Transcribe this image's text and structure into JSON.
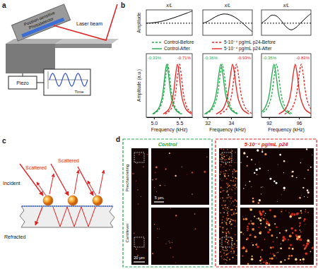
{
  "panel_labels": [
    "a",
    "b",
    "c",
    "d"
  ],
  "panel_a": {
    "detector_label": [
      "Position-sensitive",
      "Photodetector"
    ],
    "laser_label": "Laser beam",
    "piezo_label": "Piezo",
    "time_label": "Time"
  },
  "legend": [
    {
      "name": "Control-Before",
      "color": "#22a84a",
      "line_style": "dashed"
    },
    {
      "name": "5·10⁻⁴ pg/mL p24-Before",
      "color": "#e8231f",
      "line_style": "dashed"
    },
    {
      "name": "Control-After",
      "color": "#22a84a",
      "line_style": "solid"
    },
    {
      "name": "5·10⁻⁴ pg/mL p24-After",
      "color": "#e8231f",
      "line_style": "solid"
    }
  ],
  "chart_data": [
    {
      "type": "line",
      "x_label": "x/L",
      "y_label": "Amplitude",
      "xlim": [
        0,
        1
      ],
      "ylim": [
        -1,
        1.1
      ],
      "tick_labels": false,
      "series": [
        {
          "color": "#000000",
          "line_style": "dashed",
          "x": [
            0,
            1
          ],
          "values": [
            0,
            0
          ]
        },
        {
          "color": "#000000",
          "line_style": "solid",
          "x": [
            0,
            0.1,
            0.2,
            0.3,
            0.4,
            0.5,
            0.6,
            0.7,
            0.8,
            0.9,
            1
          ],
          "values": [
            0,
            0.02,
            0.06,
            0.13,
            0.22,
            0.33,
            0.45,
            0.58,
            0.72,
            0.86,
            1
          ]
        }
      ]
    },
    {
      "type": "line",
      "x_label": "x/L",
      "xlim": [
        0,
        1
      ],
      "ylim": [
        -1,
        1.1
      ],
      "tick_labels": false,
      "series": [
        {
          "color": "#000000",
          "line_style": "dashed",
          "x": [
            0,
            1
          ],
          "values": [
            0,
            0
          ]
        },
        {
          "color": "#000000",
          "line_style": "solid",
          "x": [
            0,
            0.1,
            0.2,
            0.3,
            0.4,
            0.5,
            0.6,
            0.7,
            0.8,
            0.9,
            1
          ],
          "values": [
            0,
            0.15,
            0.4,
            0.62,
            0.75,
            0.74,
            0.6,
            0.35,
            0.02,
            -0.35,
            -0.7
          ]
        }
      ]
    },
    {
      "type": "line",
      "x_label": "x/L",
      "xlim": [
        0,
        1
      ],
      "ylim": [
        -1,
        1.1
      ],
      "tick_labels": false,
      "series": [
        {
          "color": "#000000",
          "line_style": "dashed",
          "x": [
            0,
            1
          ],
          "values": [
            0,
            0
          ]
        },
        {
          "color": "#000000",
          "line_style": "solid",
          "x": [
            0,
            0.1,
            0.2,
            0.3,
            0.4,
            0.5,
            0.6,
            0.7,
            0.8,
            0.9,
            1
          ],
          "values": [
            0,
            0.3,
            0.65,
            0.6,
            0.2,
            -0.3,
            -0.55,
            -0.35,
            0.05,
            0.45,
            0.8
          ]
        }
      ]
    },
    {
      "type": "line",
      "x_label": "Frequency (kHz)",
      "y_label": "Amplitude (a.u.)",
      "xlim": [
        4.85,
        5.75
      ],
      "ylim": [
        0,
        1.2
      ],
      "tick_labels": "x",
      "xticks": [
        {
          "value": 5,
          "label": "5.0"
        },
        5.5
      ],
      "annotations": [
        {
          "text": "-0.33%",
          "color": "#22a84a"
        },
        {
          "text": "-0.71%",
          "color": "#e8231f"
        }
      ],
      "series": [
        {
          "color": "#22a84a",
          "line_style": "dashed",
          "x": [
            4.99,
            5.095,
            5.165,
            5.2,
            5.235,
            5.27,
            5.305,
            5.34,
            5.375,
            5.445,
            5.55
          ],
          "values": [
            0.06,
            0.14,
            0.31,
            0.5,
            0.8,
            1,
            0.8,
            0.5,
            0.31,
            0.14,
            0.06
          ]
        },
        {
          "color": "#e8231f",
          "line_style": "dashed",
          "x": [
            5.22,
            5.325,
            5.395,
            5.43,
            5.465,
            5.5,
            5.535,
            5.57,
            5.605,
            5.675,
            5.78
          ],
          "values": [
            0.06,
            0.14,
            0.31,
            0.5,
            0.8,
            1,
            0.8,
            0.5,
            0.31,
            0.14,
            0.06
          ]
        },
        {
          "color": "#22a84a",
          "line_style": "solid",
          "x": [
            4.97,
            5.075,
            5.145,
            5.18,
            5.215,
            5.25,
            5.285,
            5.32,
            5.355,
            5.425,
            5.53
          ],
          "values": [
            0.06,
            0.14,
            0.31,
            0.5,
            0.8,
            1,
            0.8,
            0.5,
            0.31,
            0.14,
            0.06
          ]
        },
        {
          "color": "#e8231f",
          "line_style": "solid",
          "x": [
            5.18,
            5.285,
            5.355,
            5.39,
            5.425,
            5.46,
            5.495,
            5.53,
            5.565,
            5.635,
            5.74
          ],
          "values": [
            0.06,
            0.14,
            0.31,
            0.5,
            0.8,
            1,
            0.8,
            0.5,
            0.31,
            0.14,
            0.06
          ]
        }
      ]
    },
    {
      "type": "line",
      "x_label": "Frequency (kHz)",
      "xlim": [
        31.6,
        35.8
      ],
      "ylim": [
        0,
        1.2
      ],
      "tick_labels": "x",
      "xticks": [
        32,
        34
      ],
      "annotations": [
        {
          "text": "-0.36%",
          "color": "#22a84a"
        },
        {
          "text": "-0.93%",
          "color": "#e8231f"
        }
      ],
      "series": [
        {
          "color": "#22a84a",
          "line_style": "dashed",
          "x": [
            31.85,
            32.375,
            32.725,
            32.9,
            33.075,
            33.25,
            33.425,
            33.6,
            33.775,
            34.125,
            34.65
          ],
          "values": [
            0.06,
            0.14,
            0.31,
            0.5,
            0.8,
            1,
            0.8,
            0.5,
            0.31,
            0.14,
            0.06
          ]
        },
        {
          "color": "#e8231f",
          "line_style": "dashed",
          "x": [
            33.05,
            33.575,
            33.925,
            34.1,
            34.275,
            34.45,
            34.625,
            34.8,
            34.975,
            35.325,
            35.85
          ],
          "values": [
            0.06,
            0.14,
            0.31,
            0.5,
            0.8,
            1,
            0.8,
            0.5,
            0.31,
            0.14,
            0.06
          ]
        },
        {
          "color": "#22a84a",
          "line_style": "solid",
          "x": [
            31.73,
            32.255,
            32.605,
            32.78,
            32.955,
            33.13,
            33.305,
            33.48,
            33.655,
            34.005,
            34.53
          ],
          "values": [
            0.06,
            0.14,
            0.31,
            0.5,
            0.8,
            1,
            0.8,
            0.5,
            0.31,
            0.14,
            0.06
          ]
        },
        {
          "color": "#e8231f",
          "line_style": "solid",
          "x": [
            32.73,
            33.255,
            33.605,
            33.78,
            33.955,
            34.13,
            34.305,
            34.48,
            34.655,
            35.005,
            35.53
          ],
          "values": [
            0.06,
            0.14,
            0.31,
            0.5,
            0.8,
            1,
            0.8,
            0.5,
            0.31,
            0.14,
            0.06
          ]
        }
      ]
    },
    {
      "type": "line",
      "x_label": "Frequency (kHz)",
      "xlim": [
        91,
        97.6
      ],
      "ylim": [
        0,
        1.2
      ],
      "tick_labels": "x",
      "xticks": [
        92,
        96
      ],
      "annotations": [
        {
          "text": "-0.35%",
          "color": "#22a84a"
        },
        {
          "text": "-0.83%",
          "color": "#e8231f"
        }
      ],
      "series": [
        {
          "color": "#22a84a",
          "line_style": "dashed",
          "x": [
            90.8,
            91.625,
            92.175,
            92.45,
            92.725,
            93,
            93.275,
            93.55,
            93.825,
            94.375,
            95.2
          ],
          "values": [
            0.06,
            0.14,
            0.31,
            0.5,
            0.8,
            1,
            0.8,
            0.5,
            0.31,
            0.14,
            0.06
          ]
        },
        {
          "color": "#e8231f",
          "line_style": "dashed",
          "x": [
            94.1,
            94.925,
            95.475,
            95.75,
            96.025,
            96.3,
            96.575,
            96.85,
            97.125,
            97.675,
            98.5
          ],
          "values": [
            0.06,
            0.14,
            0.31,
            0.5,
            0.8,
            1,
            0.8,
            0.5,
            0.31,
            0.14,
            0.06
          ]
        },
        {
          "color": "#22a84a",
          "line_style": "solid",
          "x": [
            90.47,
            91.295,
            91.845,
            92.12,
            92.395,
            92.67,
            92.945,
            93.22,
            93.495,
            94.045,
            94.87
          ],
          "values": [
            0.06,
            0.14,
            0.31,
            0.5,
            0.8,
            1,
            0.8,
            0.5,
            0.31,
            0.14,
            0.06
          ]
        },
        {
          "color": "#e8231f",
          "line_style": "solid",
          "x": [
            93.3,
            94.125,
            94.675,
            94.95,
            95.225,
            95.5,
            95.775,
            96.05,
            96.325,
            96.875,
            97.7
          ],
          "values": [
            0.06,
            0.14,
            0.31,
            0.5,
            0.8,
            1,
            0.8,
            0.5,
            0.31,
            0.14,
            0.06
          ]
        }
      ]
    }
  ],
  "panel_c": {
    "incident": "Incident",
    "scattered": [
      "Scattered",
      "Scattered"
    ],
    "refracted": "Refracted"
  },
  "panel_d": {
    "panels": [
      {
        "title": "Control",
        "color": "#22a84a"
      },
      {
        "title": "5·10⁻⁴ pg/mL p24",
        "color": "#e8231f"
      }
    ],
    "side_labels": [
      "Prechanneling",
      "Cantilever"
    ],
    "scale_bars": [
      "20 μm",
      "5 μm"
    ]
  }
}
